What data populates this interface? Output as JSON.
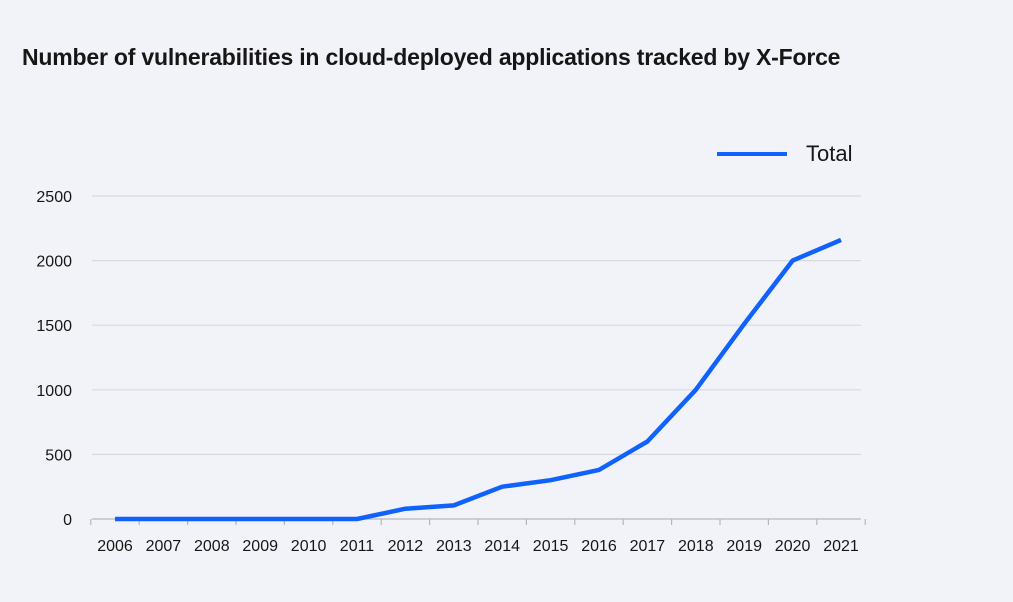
{
  "chart_data": {
    "type": "line",
    "title": "Number of vulnerabilities in cloud-deployed applications tracked by X-Force",
    "xlabel": "",
    "ylabel": "",
    "categories": [
      "2006",
      "2007",
      "2008",
      "2009",
      "2010",
      "2011",
      "2012",
      "2013",
      "2014",
      "2015",
      "2016",
      "2017",
      "2018",
      "2019",
      "2020",
      "2021"
    ],
    "series": [
      {
        "name": "Total",
        "color": "#0f62fe",
        "values": [
          0,
          0,
          0,
          0,
          0,
          0,
          80,
          105,
          250,
          300,
          380,
          600,
          1000,
          1510,
          2000,
          2160
        ]
      }
    ],
    "ylim": [
      0,
      2500
    ],
    "yticks": [
      "0",
      "500",
      "1000",
      "1500",
      "2000",
      "2500"
    ],
    "grid": true,
    "legend_position": "top-right"
  }
}
